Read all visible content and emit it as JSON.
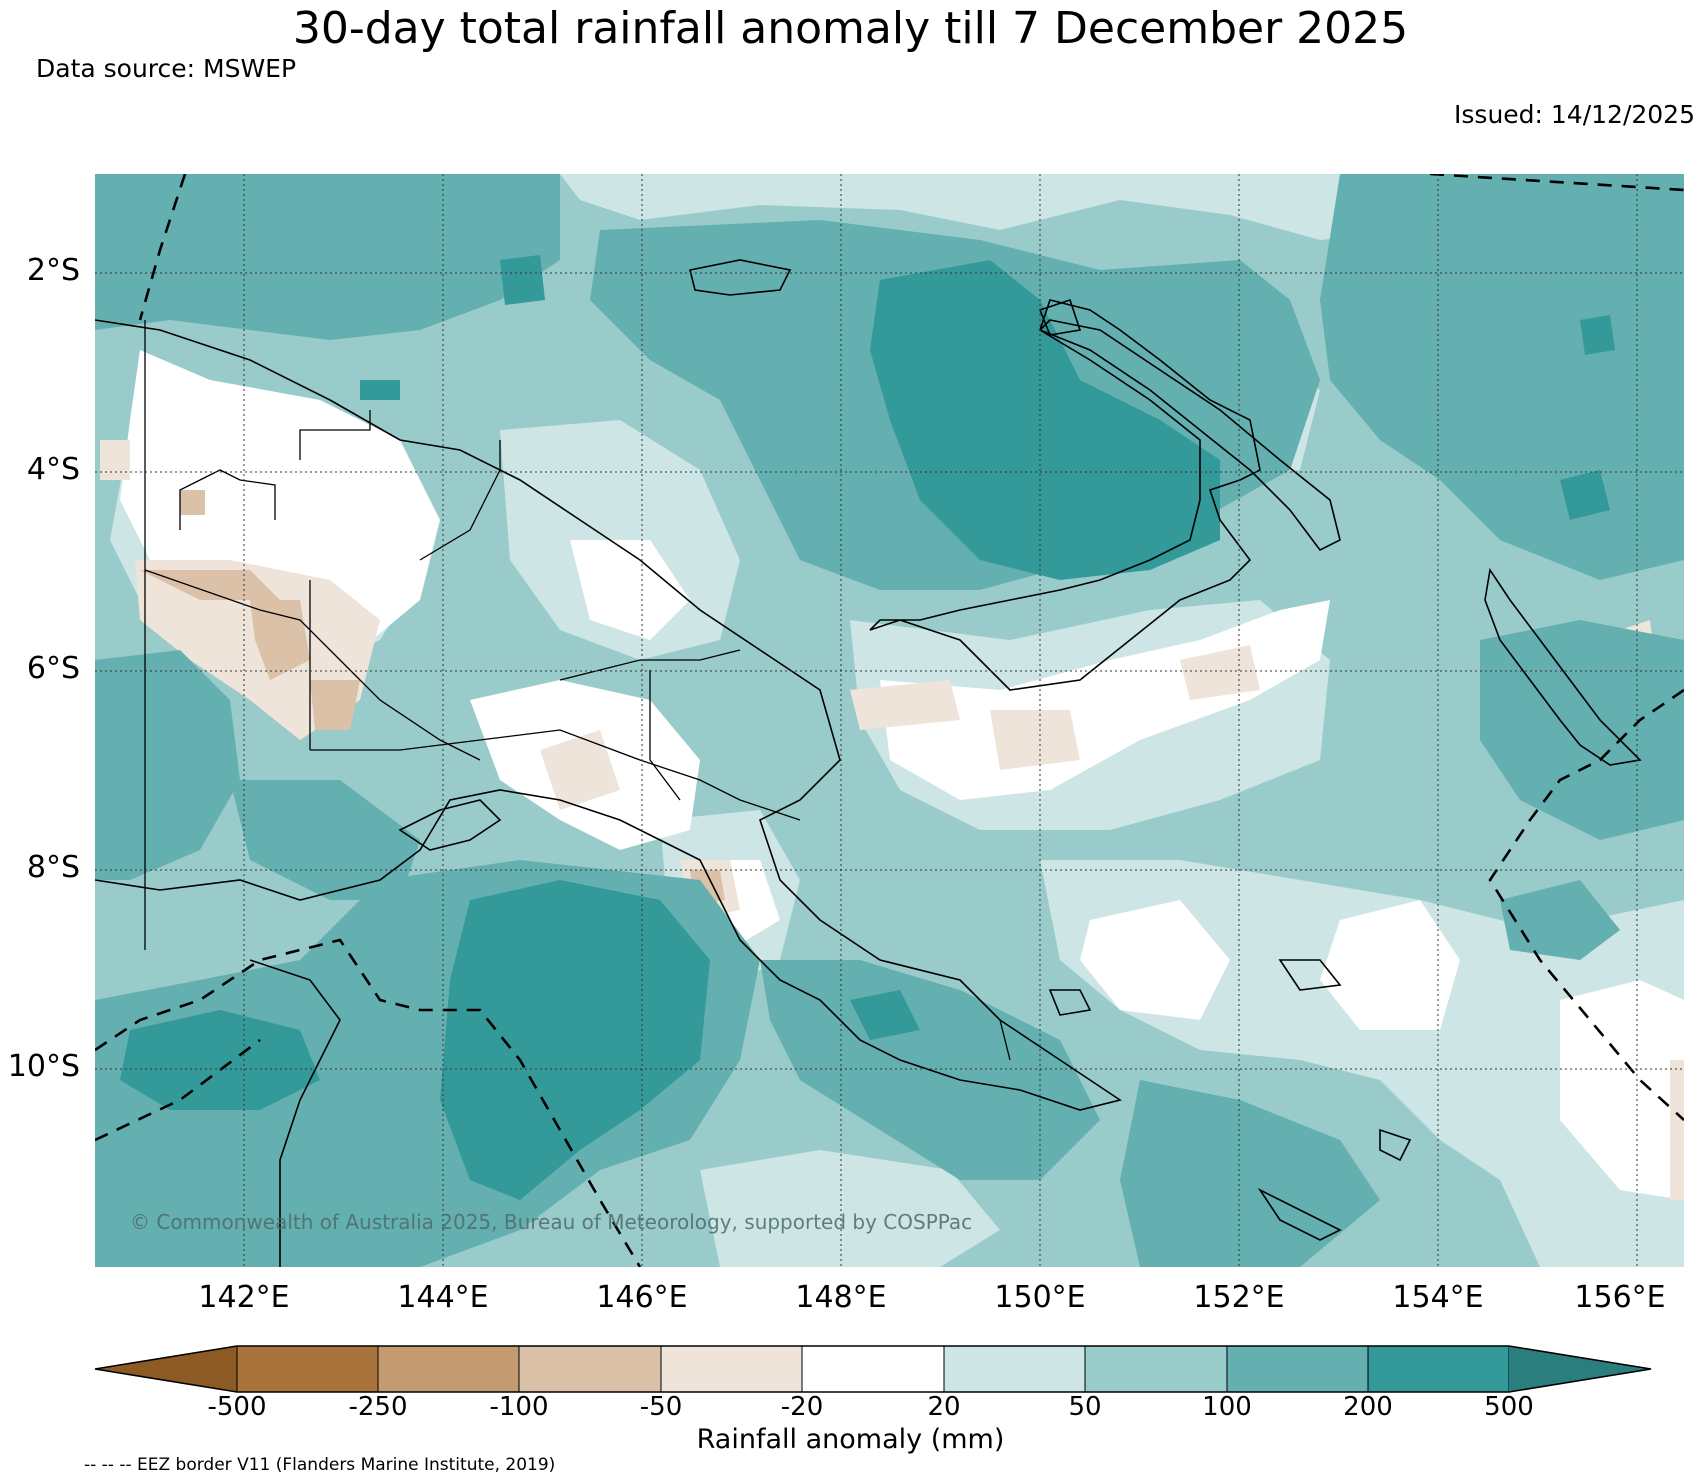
{
  "title": "30-day total rainfall anomaly till 7 December 2025",
  "data_source": "Data source: MSWEP",
  "issued": "Issued: 14/12/2025",
  "map": {
    "lat_labels": [
      "2°S",
      "4°S",
      "6°S",
      "8°S",
      "10°S"
    ],
    "lon_labels": [
      "142°E",
      "144°E",
      "146°E",
      "148°E",
      "150°E",
      "152°E",
      "154°E",
      "156°E"
    ],
    "copyright": "© Commonwealth of Australia 2025, Bureau of Meteorology, supported by COSPPac"
  },
  "colorbar": {
    "title": "Rainfall anomaly (mm)",
    "tick_labels": [
      "-500",
      "-250",
      "-100",
      "-50",
      "-20",
      "20",
      "50",
      "100",
      "200",
      "500"
    ],
    "colors": [
      "#8c5a25",
      "#a9733c",
      "#c49b71",
      "#dcc1a9",
      "#efe4da",
      "#ffffff",
      "#cde5e5",
      "#99cbcb",
      "#64afaf",
      "#339999",
      "#2b7e7e"
    ]
  },
  "footnote": "-- -- -- EEZ border V11 (Flanders Marine Institute, 2019)"
}
